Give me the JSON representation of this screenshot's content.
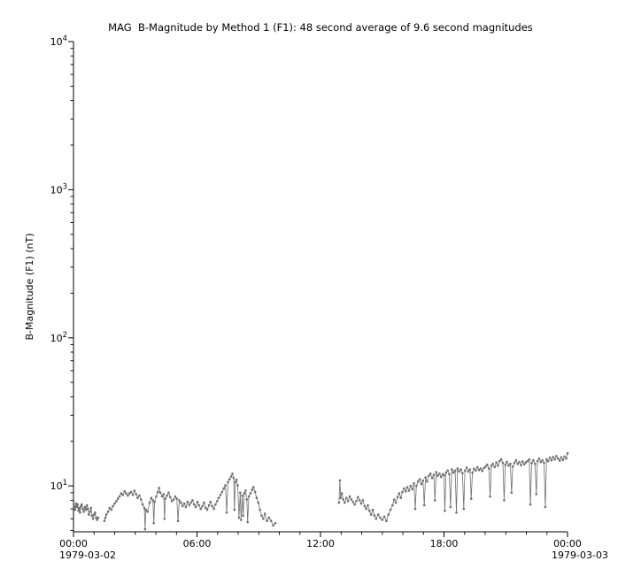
{
  "title": "MAG  B-Magnitude by Method 1 (F1): 48 second average of 9.6 second magnitudes",
  "colors": {
    "background": "#ffffff",
    "axis": "#000000",
    "data": "#6e6e6e"
  },
  "chart_data": {
    "type": "scatter",
    "title": "MAG  B-Magnitude by Method 1 (F1): 48 second average of 9.6 second magnitudes",
    "xlabel": "",
    "ylabel": "B-Magnitude (F1) (nT)",
    "grid": false,
    "legend": "none",
    "x_axis": {
      "min": 0,
      "max": 24,
      "ticks": [
        0,
        6,
        12,
        18,
        24
      ],
      "tick_labels": [
        "00:00",
        "06:00",
        "12:00",
        "18:00",
        "00:00"
      ],
      "minor_tick_step_hours": 1,
      "start_date": "1979-03-02",
      "end_date": "1979-03-03"
    },
    "y_axis": {
      "scale": "log",
      "min": 4.9,
      "max": 10000,
      "major_tick_exponents": [
        1,
        2,
        3,
        4
      ],
      "base_label": "10"
    },
    "series": [
      {
        "name": "B-Magnitude (F1)",
        "color": "#6e6e6e",
        "gap_threshold_hours": 0.2,
        "points": [
          [
            0.0,
            7.9
          ],
          [
            0.04,
            7.3
          ],
          [
            0.08,
            6.9
          ],
          [
            0.12,
            7.6
          ],
          [
            0.16,
            7.2
          ],
          [
            0.2,
            7.5
          ],
          [
            0.24,
            6.8
          ],
          [
            0.28,
            7.1
          ],
          [
            0.32,
            6.6
          ],
          [
            0.36,
            7.3
          ],
          [
            0.4,
            7.5
          ],
          [
            0.45,
            7.0
          ],
          [
            0.5,
            6.7
          ],
          [
            0.55,
            7.2
          ],
          [
            0.6,
            6.9
          ],
          [
            0.65,
            7.4
          ],
          [
            0.7,
            7.0
          ],
          [
            0.75,
            6.4
          ],
          [
            0.8,
            6.7
          ],
          [
            0.85,
            7.1
          ],
          [
            0.9,
            6.3
          ],
          [
            0.95,
            6.0
          ],
          [
            1.0,
            6.4
          ],
          [
            1.05,
            6.6
          ],
          [
            1.1,
            6.1
          ],
          [
            1.15,
            5.9
          ],
          [
            1.2,
            6.1
          ],
          [
            1.5,
            5.8
          ],
          [
            1.55,
            6.1
          ],
          [
            1.6,
            6.4
          ],
          [
            1.68,
            6.7
          ],
          [
            1.76,
            7.1
          ],
          [
            1.84,
            6.9
          ],
          [
            1.92,
            7.3
          ],
          [
            2.0,
            7.6
          ],
          [
            2.08,
            7.9
          ],
          [
            2.16,
            8.2
          ],
          [
            2.24,
            8.5
          ],
          [
            2.32,
            8.9
          ],
          [
            2.4,
            8.7
          ],
          [
            2.48,
            9.2
          ],
          [
            2.56,
            8.9
          ],
          [
            2.64,
            8.6
          ],
          [
            2.72,
            8.9
          ],
          [
            2.8,
            9.1
          ],
          [
            2.88,
            8.7
          ],
          [
            2.96,
            9.3
          ],
          [
            3.04,
            8.8
          ],
          [
            3.12,
            8.3
          ],
          [
            3.2,
            8.6
          ],
          [
            3.28,
            8.1
          ],
          [
            3.36,
            7.5
          ],
          [
            3.44,
            7.1
          ],
          [
            3.48,
            5.1
          ],
          [
            3.52,
            6.9
          ],
          [
            3.6,
            6.7
          ],
          [
            3.7,
            7.7
          ],
          [
            3.78,
            8.3
          ],
          [
            3.86,
            8.0
          ],
          [
            3.9,
            5.6
          ],
          [
            3.94,
            7.8
          ],
          [
            4.02,
            8.5
          ],
          [
            4.1,
            9.1
          ],
          [
            4.16,
            9.7
          ],
          [
            4.22,
            9.0
          ],
          [
            4.3,
            8.5
          ],
          [
            4.38,
            8.8
          ],
          [
            4.42,
            6.0
          ],
          [
            4.46,
            8.2
          ],
          [
            4.54,
            8.6
          ],
          [
            4.62,
            9.0
          ],
          [
            4.7,
            8.4
          ],
          [
            4.78,
            7.9
          ],
          [
            4.86,
            8.1
          ],
          [
            4.94,
            8.5
          ],
          [
            5.02,
            8.2
          ],
          [
            5.08,
            5.8
          ],
          [
            5.14,
            8.0
          ],
          [
            5.22,
            7.7
          ],
          [
            5.3,
            7.3
          ],
          [
            5.38,
            7.6
          ],
          [
            5.46,
            7.2
          ],
          [
            5.54,
            7.8
          ],
          [
            5.62,
            7.4
          ],
          [
            5.7,
            7.7
          ],
          [
            5.78,
            8.0
          ],
          [
            5.86,
            7.5
          ],
          [
            5.94,
            7.2
          ],
          [
            6.02,
            7.8
          ],
          [
            6.1,
            7.4
          ],
          [
            6.18,
            7.0
          ],
          [
            6.26,
            7.3
          ],
          [
            6.34,
            7.7
          ],
          [
            6.42,
            7.1
          ],
          [
            6.5,
            6.9
          ],
          [
            6.58,
            7.4
          ],
          [
            6.66,
            7.8
          ],
          [
            6.74,
            7.3
          ],
          [
            6.82,
            7.0
          ],
          [
            6.9,
            7.5
          ],
          [
            6.98,
            7.9
          ],
          [
            7.06,
            8.3
          ],
          [
            7.14,
            8.7
          ],
          [
            7.22,
            9.1
          ],
          [
            7.3,
            9.6
          ],
          [
            7.38,
            10.1
          ],
          [
            7.44,
            6.6
          ],
          [
            7.5,
            10.6
          ],
          [
            7.58,
            11.1
          ],
          [
            7.66,
            11.6
          ],
          [
            7.72,
            12.1
          ],
          [
            7.78,
            11.3
          ],
          [
            7.82,
            6.9
          ],
          [
            7.86,
            10.6
          ],
          [
            7.92,
            11.0
          ],
          [
            7.98,
            10.1
          ],
          [
            8.04,
            6.1
          ],
          [
            8.1,
            9.0
          ],
          [
            8.14,
            5.9
          ],
          [
            8.2,
            8.6
          ],
          [
            8.24,
            6.3
          ],
          [
            8.3,
            8.9
          ],
          [
            8.36,
            9.3
          ],
          [
            8.42,
            8.1
          ],
          [
            8.46,
            5.7
          ],
          [
            8.52,
            8.5
          ],
          [
            8.6,
            8.9
          ],
          [
            8.68,
            9.4
          ],
          [
            8.74,
            9.8
          ],
          [
            8.82,
            9.1
          ],
          [
            8.9,
            8.3
          ],
          [
            8.98,
            7.7
          ],
          [
            9.06,
            6.9
          ],
          [
            9.14,
            6.3
          ],
          [
            9.22,
            6.0
          ],
          [
            9.3,
            6.5
          ],
          [
            9.4,
            5.8
          ],
          [
            9.5,
            6.1
          ],
          [
            9.6,
            5.8
          ],
          [
            9.7,
            5.4
          ],
          [
            9.8,
            5.6
          ],
          [
            12.9,
            7.7
          ],
          [
            12.94,
            10.9
          ],
          [
            12.98,
            8.3
          ],
          [
            13.04,
            8.9
          ],
          [
            13.1,
            8.1
          ],
          [
            13.18,
            7.7
          ],
          [
            13.26,
            8.3
          ],
          [
            13.34,
            7.9
          ],
          [
            13.42,
            8.5
          ],
          [
            13.5,
            8.1
          ],
          [
            13.58,
            7.8
          ],
          [
            13.66,
            7.5
          ],
          [
            13.74,
            7.9
          ],
          [
            13.82,
            8.4
          ],
          [
            13.9,
            8.0
          ],
          [
            13.98,
            7.6
          ],
          [
            14.06,
            8.0
          ],
          [
            14.14,
            7.3
          ],
          [
            14.22,
            7.0
          ],
          [
            14.3,
            7.4
          ],
          [
            14.38,
            6.8
          ],
          [
            14.46,
            6.4
          ],
          [
            14.54,
            6.9
          ],
          [
            14.62,
            6.3
          ],
          [
            14.7,
            6.0
          ],
          [
            14.8,
            6.4
          ],
          [
            14.9,
            6.1
          ],
          [
            15.0,
            5.9
          ],
          [
            15.1,
            6.2
          ],
          [
            15.2,
            5.8
          ],
          [
            15.3,
            6.4
          ],
          [
            15.4,
            6.9
          ],
          [
            15.5,
            7.4
          ],
          [
            15.58,
            8.1
          ],
          [
            15.66,
            7.7
          ],
          [
            15.74,
            8.4
          ],
          [
            15.82,
            8.9
          ],
          [
            15.9,
            8.3
          ],
          [
            15.98,
            9.1
          ],
          [
            16.06,
            9.6
          ],
          [
            16.14,
            9.2
          ],
          [
            16.22,
            9.8
          ],
          [
            16.3,
            9.3
          ],
          [
            16.38,
            10.0
          ],
          [
            16.46,
            9.5
          ],
          [
            16.54,
            10.4
          ],
          [
            16.6,
            7.0
          ],
          [
            16.66,
            10.0
          ],
          [
            16.74,
            10.7
          ],
          [
            16.82,
            11.1
          ],
          [
            16.9,
            10.3
          ],
          [
            16.98,
            10.9
          ],
          [
            17.04,
            7.4
          ],
          [
            17.1,
            11.4
          ],
          [
            17.18,
            10.7
          ],
          [
            17.26,
            11.7
          ],
          [
            17.34,
            12.1
          ],
          [
            17.42,
            11.3
          ],
          [
            17.5,
            11.9
          ],
          [
            17.56,
            8.0
          ],
          [
            17.62,
            12.4
          ],
          [
            17.7,
            11.7
          ],
          [
            17.78,
            12.1
          ],
          [
            17.86,
            11.5
          ],
          [
            17.94,
            12.0
          ],
          [
            18.0,
            11.8
          ],
          [
            18.04,
            6.8
          ],
          [
            18.1,
            12.3
          ],
          [
            18.18,
            12.7
          ],
          [
            18.26,
            12.0
          ],
          [
            18.32,
            7.2
          ],
          [
            18.38,
            12.9
          ],
          [
            18.46,
            12.3
          ],
          [
            18.54,
            12.7
          ],
          [
            18.6,
            6.6
          ],
          [
            18.66,
            13.1
          ],
          [
            18.74,
            12.5
          ],
          [
            18.82,
            12.9
          ],
          [
            18.9,
            12.2
          ],
          [
            18.96,
            7.0
          ],
          [
            19.02,
            12.7
          ],
          [
            19.1,
            13.3
          ],
          [
            19.18,
            12.5
          ],
          [
            19.26,
            12.9
          ],
          [
            19.32,
            8.2
          ],
          [
            19.38,
            12.3
          ],
          [
            19.46,
            13.1
          ],
          [
            19.54,
            12.7
          ],
          [
            19.62,
            13.4
          ],
          [
            19.7,
            12.8
          ],
          [
            19.78,
            13.1
          ],
          [
            19.86,
            12.6
          ],
          [
            19.94,
            13.2
          ],
          [
            20.02,
            13.5
          ],
          [
            20.1,
            13.9
          ],
          [
            20.18,
            13.1
          ],
          [
            20.24,
            8.5
          ],
          [
            20.3,
            13.7
          ],
          [
            20.38,
            14.1
          ],
          [
            20.46,
            13.4
          ],
          [
            20.54,
            14.4
          ],
          [
            20.62,
            13.7
          ],
          [
            20.7,
            14.7
          ],
          [
            20.78,
            15.1
          ],
          [
            20.86,
            14.3
          ],
          [
            20.92,
            8.0
          ],
          [
            20.98,
            13.9
          ],
          [
            21.06,
            14.5
          ],
          [
            21.14,
            13.7
          ],
          [
            21.22,
            14.1
          ],
          [
            21.28,
            9.0
          ],
          [
            21.34,
            13.5
          ],
          [
            21.42,
            14.3
          ],
          [
            21.5,
            14.9
          ],
          [
            21.58,
            14.1
          ],
          [
            21.66,
            14.5
          ],
          [
            21.74,
            13.8
          ],
          [
            21.82,
            14.6
          ],
          [
            21.9,
            14.0
          ],
          [
            21.98,
            14.4
          ],
          [
            22.06,
            14.7
          ],
          [
            22.14,
            15.1
          ],
          [
            22.2,
            7.5
          ],
          [
            22.26,
            14.3
          ],
          [
            22.34,
            14.9
          ],
          [
            22.42,
            14.1
          ],
          [
            22.48,
            8.8
          ],
          [
            22.54,
            14.7
          ],
          [
            22.62,
            15.3
          ],
          [
            22.7,
            14.5
          ],
          [
            22.78,
            14.9
          ],
          [
            22.86,
            14.3
          ],
          [
            22.92,
            7.2
          ],
          [
            22.98,
            15.1
          ],
          [
            23.06,
            14.7
          ],
          [
            23.14,
            15.5
          ],
          [
            23.22,
            14.9
          ],
          [
            23.3,
            15.7
          ],
          [
            23.38,
            15.1
          ],
          [
            23.46,
            15.9
          ],
          [
            23.54,
            15.3
          ],
          [
            23.62,
            14.8
          ],
          [
            23.7,
            15.6
          ],
          [
            23.78,
            15.0
          ],
          [
            23.86,
            15.8
          ],
          [
            23.94,
            15.3
          ],
          [
            24.0,
            16.6
          ]
        ]
      }
    ]
  }
}
